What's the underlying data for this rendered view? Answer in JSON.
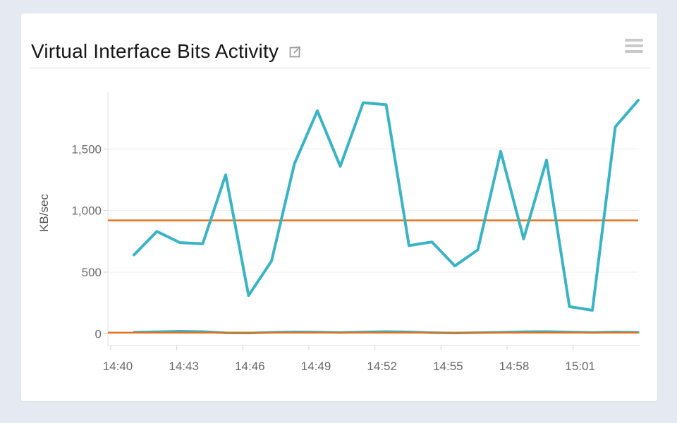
{
  "window": {
    "background_color": "#E5E9F2",
    "card_background_color": "#FFFFFF"
  },
  "header": {
    "title": "Virtual Interface Bits Activity",
    "external_link_icon": "open-in-new-window",
    "menu_icon": "hamburger-menu"
  },
  "chart_data": {
    "type": "line",
    "title": "Virtual Interface Bits Activity",
    "xlabel": "",
    "ylabel": "KB/sec",
    "ylim": [
      -100,
      1980
    ],
    "grid": true,
    "legend": false,
    "y_ticks": [
      {
        "value": 0,
        "label": "0"
      },
      {
        "value": 500,
        "label": "500"
      },
      {
        "value": 1000,
        "label": "1,000"
      },
      {
        "value": 1500,
        "label": "1,500"
      }
    ],
    "x_tick_labels": [
      "14:40",
      "14:43",
      "14:46",
      "14:49",
      "14:52",
      "14:55",
      "14:58",
      "15:01"
    ],
    "x": [
      "14:41",
      "14:42",
      "14:43",
      "14:44",
      "14:45",
      "14:46",
      "14:47",
      "14:48",
      "14:49",
      "14:50",
      "14:51",
      "14:52",
      "14:53",
      "14:54",
      "14:55",
      "14:56",
      "14:57",
      "14:58",
      "14:59",
      "15:00",
      "15:01",
      "15:02",
      "15:03"
    ],
    "series": [
      {
        "name": "series-1",
        "color": "#3AB4C4",
        "values": [
          640,
          830,
          740,
          730,
          1290,
          310,
          590,
          1380,
          1810,
          1360,
          1875,
          1860,
          715,
          745,
          550,
          680,
          1480,
          770,
          1410,
          220,
          190,
          1680,
          1895
        ]
      },
      {
        "name": "series-2",
        "color": "#3AB4C4",
        "values": [
          12,
          16,
          20,
          17,
          7,
          5,
          11,
          15,
          13,
          10,
          14,
          18,
          15,
          8,
          5,
          8,
          12,
          16,
          18,
          14,
          10,
          14,
          11
        ]
      }
    ],
    "reference_lines": [
      {
        "value": 920,
        "color": "#E1711C"
      },
      {
        "value": 8,
        "color": "#E1711C"
      }
    ],
    "colors": {
      "grid_line": "#EDEDED",
      "axis_line": "#E2E2E2",
      "tick_mark": "#CFCFCF",
      "tick_label": "#6A6A6A",
      "axis_title": "#565656"
    }
  }
}
